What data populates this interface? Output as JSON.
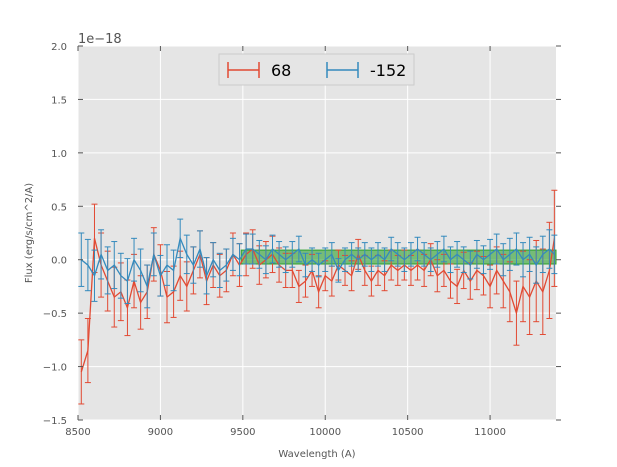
{
  "chart_data": {
    "type": "line",
    "title": "",
    "xlabel": "Wavelength (A)",
    "ylabel": "Flux (erg/s/cm^2/A)",
    "offset_label": "1e−18",
    "xlim": [
      8500,
      11400
    ],
    "ylim": [
      -1.5,
      2.0
    ],
    "grid": true,
    "legend_position": "top-center",
    "x_ticks": [
      8500,
      9000,
      9500,
      10000,
      10500,
      11000
    ],
    "x_tick_labels": [
      "8500",
      "9000",
      "9500",
      "10000",
      "10500",
      "11000"
    ],
    "y_ticks": [
      -1.5,
      -1.0,
      -0.5,
      0.0,
      0.5,
      1.0,
      1.5,
      2.0
    ],
    "y_tick_labels": [
      "−1.5",
      "−1.0",
      "−0.5",
      "0.0",
      "0.5",
      "1.0",
      "1.5",
      "2.0"
    ],
    "band": {
      "x0": 9490,
      "x1": 11400,
      "y0": -0.04,
      "y1": 0.09,
      "color": "#2ca02c"
    },
    "series": [
      {
        "name": "68",
        "color": "#e24a33",
        "x": [
          8520,
          8560,
          8600,
          8640,
          8680,
          8720,
          8760,
          8800,
          8840,
          8880,
          8920,
          8960,
          9000,
          9040,
          9080,
          9120,
          9160,
          9200,
          9240,
          9280,
          9320,
          9360,
          9400,
          9440,
          9480,
          9520,
          9560,
          9600,
          9640,
          9680,
          9720,
          9760,
          9800,
          9840,
          9880,
          9920,
          9960,
          10000,
          10040,
          10080,
          10120,
          10160,
          10200,
          10240,
          10280,
          10320,
          10360,
          10400,
          10440,
          10480,
          10520,
          10560,
          10600,
          10640,
          10680,
          10720,
          10760,
          10800,
          10840,
          10880,
          10920,
          10960,
          11000,
          11040,
          11080,
          11120,
          11160,
          11200,
          11240,
          11280,
          11320,
          11360,
          11390
        ],
        "values": [
          -1.05,
          -0.85,
          0.2,
          -0.05,
          -0.2,
          -0.35,
          -0.3,
          -0.45,
          -0.2,
          -0.4,
          -0.3,
          0.05,
          -0.1,
          -0.35,
          -0.3,
          -0.15,
          -0.25,
          -0.1,
          0.05,
          -0.2,
          -0.05,
          -0.15,
          -0.1,
          0.05,
          -0.05,
          0.05,
          0.1,
          -0.05,
          0.0,
          0.05,
          -0.05,
          -0.1,
          -0.1,
          -0.25,
          -0.2,
          -0.1,
          -0.3,
          -0.15,
          -0.2,
          -0.05,
          -0.1,
          -0.15,
          0.05,
          -0.1,
          -0.2,
          -0.1,
          -0.15,
          -0.05,
          -0.1,
          -0.05,
          -0.1,
          -0.05,
          -0.1,
          0.0,
          -0.15,
          -0.1,
          -0.2,
          -0.25,
          -0.1,
          -0.2,
          -0.1,
          -0.15,
          -0.25,
          -0.1,
          -0.2,
          -0.3,
          -0.5,
          -0.25,
          -0.35,
          -0.2,
          -0.3,
          -0.1,
          0.2
        ],
        "errors": [
          0.3,
          0.3,
          0.32,
          0.3,
          0.28,
          0.28,
          0.27,
          0.26,
          0.25,
          0.25,
          0.25,
          0.25,
          0.24,
          0.24,
          0.24,
          0.23,
          0.23,
          0.22,
          0.22,
          0.22,
          0.21,
          0.2,
          0.2,
          0.2,
          0.2,
          0.2,
          0.18,
          0.18,
          0.17,
          0.17,
          0.16,
          0.16,
          0.16,
          0.15,
          0.15,
          0.15,
          0.15,
          0.14,
          0.14,
          0.14,
          0.14,
          0.14,
          0.14,
          0.14,
          0.14,
          0.14,
          0.14,
          0.14,
          0.14,
          0.14,
          0.14,
          0.14,
          0.15,
          0.15,
          0.15,
          0.15,
          0.16,
          0.16,
          0.17,
          0.17,
          0.18,
          0.18,
          0.2,
          0.22,
          0.25,
          0.28,
          0.3,
          0.33,
          0.35,
          0.38,
          0.4,
          0.45,
          0.45
        ]
      },
      {
        "name": "-152",
        "color": "#348abd",
        "x": [
          8520,
          8560,
          8600,
          8640,
          8680,
          8720,
          8760,
          8800,
          8840,
          8880,
          8920,
          8960,
          9000,
          9040,
          9080,
          9120,
          9160,
          9200,
          9240,
          9280,
          9320,
          9360,
          9400,
          9440,
          9480,
          9520,
          9560,
          9600,
          9640,
          9680,
          9720,
          9760,
          9800,
          9840,
          9880,
          9920,
          9960,
          10000,
          10040,
          10080,
          10120,
          10160,
          10200,
          10240,
          10280,
          10320,
          10360,
          10400,
          10440,
          10480,
          10520,
          10560,
          10600,
          10640,
          10680,
          10720,
          10760,
          10800,
          10840,
          10880,
          10920,
          10960,
          11000,
          11040,
          11080,
          11120,
          11160,
          11200,
          11240,
          11280,
          11320,
          11360,
          11390
        ],
        "values": [
          0.0,
          -0.05,
          -0.15,
          0.05,
          -0.1,
          -0.05,
          -0.15,
          -0.2,
          0.0,
          -0.1,
          -0.25,
          0.05,
          -0.15,
          -0.05,
          -0.1,
          0.2,
          0.05,
          -0.05,
          0.1,
          -0.15,
          0.0,
          -0.1,
          -0.05,
          0.05,
          0.0,
          0.1,
          0.1,
          0.05,
          0.0,
          0.1,
          0.05,
          0.0,
          0.05,
          0.1,
          -0.05,
          0.0,
          -0.05,
          0.0,
          0.05,
          -0.1,
          0.0,
          0.05,
          0.0,
          0.05,
          0.0,
          0.05,
          0.0,
          0.1,
          0.05,
          0.0,
          0.05,
          0.1,
          0.05,
          0.0,
          0.05,
          0.1,
          0.0,
          0.05,
          0.0,
          -0.05,
          0.05,
          0.0,
          0.05,
          0.1,
          0.0,
          0.05,
          0.1,
          0.0,
          0.05,
          -0.05,
          0.05,
          0.1,
          0.05
        ],
        "errors": [
          0.25,
          0.24,
          0.24,
          0.23,
          0.22,
          0.22,
          0.21,
          0.21,
          0.2,
          0.2,
          0.2,
          0.2,
          0.19,
          0.19,
          0.19,
          0.18,
          0.18,
          0.17,
          0.17,
          0.17,
          0.16,
          0.16,
          0.15,
          0.15,
          0.15,
          0.14,
          0.14,
          0.13,
          0.13,
          0.13,
          0.12,
          0.12,
          0.12,
          0.12,
          0.11,
          0.11,
          0.11,
          0.11,
          0.11,
          0.11,
          0.11,
          0.11,
          0.11,
          0.11,
          0.11,
          0.11,
          0.11,
          0.11,
          0.11,
          0.11,
          0.11,
          0.11,
          0.11,
          0.11,
          0.12,
          0.12,
          0.12,
          0.12,
          0.12,
          0.13,
          0.13,
          0.13,
          0.14,
          0.14,
          0.15,
          0.15,
          0.15,
          0.16,
          0.16,
          0.17,
          0.17,
          0.18,
          0.18
        ]
      }
    ]
  }
}
